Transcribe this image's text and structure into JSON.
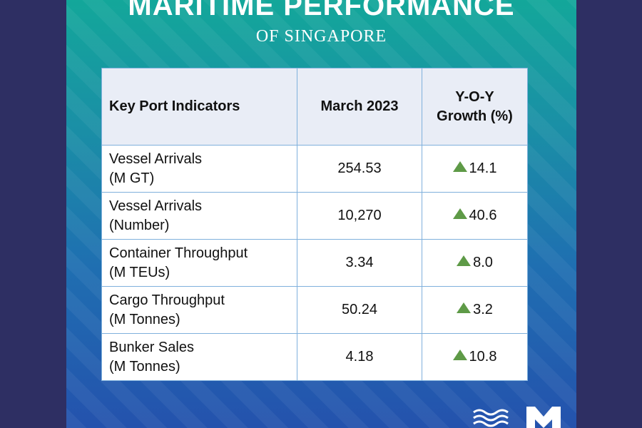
{
  "header": {
    "title": "MARITIME PERFORMANCE",
    "subtitle": "OF SINGAPORE"
  },
  "table": {
    "columns": [
      "Key Port Indicators",
      "March 2023",
      "Y-O-Y Growth (%)"
    ],
    "rows": [
      {
        "indicator_line1": "Vessel Arrivals",
        "indicator_line2": "(M GT)",
        "value": "254.53",
        "growth": "14.1"
      },
      {
        "indicator_line1": "Vessel Arrivals",
        "indicator_line2": "(Number)",
        "value": "10,270",
        "growth": "40.6"
      },
      {
        "indicator_line1": "Container Throughput",
        "indicator_line2": "(M TEUs)",
        "value": "3.34",
        "growth": "8.0"
      },
      {
        "indicator_line1": "Cargo Throughput",
        "indicator_line2": "(M Tonnes)",
        "value": "50.24",
        "growth": "3.2"
      },
      {
        "indicator_line1": "Bunker Sales",
        "indicator_line2": "(M Tonnes)",
        "value": "4.18",
        "growth": "10.8"
      }
    ]
  },
  "icons": {
    "growth": "triangle-up-icon",
    "logos": [
      "waves-logo-icon",
      "m-logo-icon"
    ]
  },
  "colors": {
    "panel_top": "#13a79a",
    "panel_bottom": "#2452ad",
    "outer_background": "#2e2f63",
    "header_row": "#e9edf6",
    "border": "#7fb0dc",
    "growth_up": "#5e9a47"
  }
}
